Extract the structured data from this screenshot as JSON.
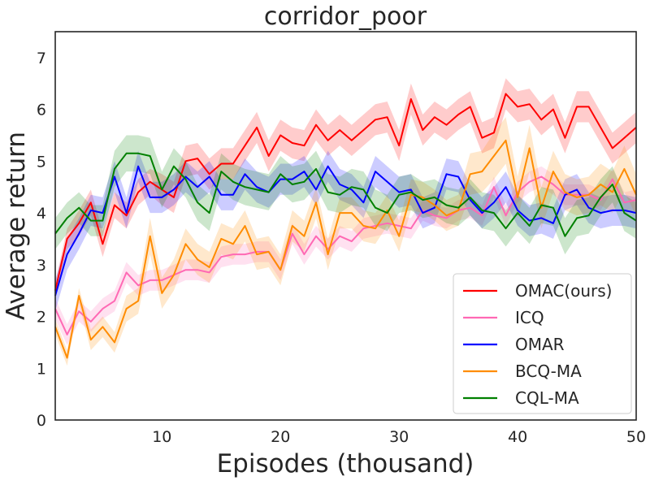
{
  "chart_data": {
    "type": "line",
    "title": "corridor_poor",
    "xlabel": "Episodes (thousand)",
    "ylabel": "Average return",
    "xlim": [
      1,
      50
    ],
    "ylim": [
      0,
      7.5
    ],
    "xticks": [
      10,
      20,
      30,
      40,
      50
    ],
    "yticks": [
      0,
      1,
      2,
      3,
      4,
      5,
      6,
      7
    ],
    "grid": false,
    "legend_position": "bottom-right",
    "x": [
      1,
      2,
      3,
      4,
      5,
      6,
      7,
      8,
      9,
      10,
      11,
      12,
      13,
      14,
      15,
      16,
      17,
      18,
      19,
      20,
      21,
      22,
      23,
      24,
      25,
      26,
      27,
      28,
      29,
      30,
      31,
      32,
      33,
      34,
      35,
      36,
      37,
      38,
      39,
      40,
      41,
      42,
      43,
      44,
      45,
      46,
      47,
      48,
      49,
      50
    ],
    "series": [
      {
        "name": "OMAC(ours)",
        "color": "#ff0000",
        "values": [
          2.5,
          3.5,
          3.8,
          4.2,
          3.4,
          4.15,
          3.95,
          4.4,
          4.6,
          4.45,
          4.3,
          5.0,
          5.05,
          4.75,
          4.95,
          4.95,
          5.3,
          5.65,
          5.1,
          5.5,
          5.35,
          5.3,
          5.7,
          5.4,
          5.6,
          5.4,
          5.6,
          5.8,
          5.85,
          5.3,
          6.2,
          5.6,
          5.85,
          5.7,
          5.9,
          6.05,
          5.45,
          5.55,
          6.3,
          6.05,
          6.1,
          5.8,
          6.0,
          5.45,
          6.05,
          6.05,
          5.65,
          5.25,
          5.45,
          5.65
        ],
        "band": [
          0.15,
          0.2,
          0.25,
          0.25,
          0.25,
          0.25,
          0.25,
          0.25,
          0.25,
          0.3,
          0.3,
          0.3,
          0.3,
          0.3,
          0.3,
          0.3,
          0.3,
          0.3,
          0.3,
          0.3,
          0.3,
          0.3,
          0.3,
          0.3,
          0.3,
          0.3,
          0.3,
          0.3,
          0.3,
          0.3,
          0.3,
          0.3,
          0.3,
          0.3,
          0.3,
          0.3,
          0.3,
          0.3,
          0.3,
          0.3,
          0.3,
          0.3,
          0.3,
          0.3,
          0.3,
          0.3,
          0.3,
          0.3,
          0.3,
          0.3
        ]
      },
      {
        "name": "ICQ",
        "color": "#ff69b4",
        "values": [
          2.15,
          1.65,
          2.1,
          1.9,
          2.15,
          2.3,
          2.85,
          2.6,
          2.7,
          2.7,
          2.8,
          2.9,
          2.9,
          2.85,
          3.15,
          3.2,
          3.2,
          3.25,
          3.25,
          2.9,
          3.6,
          3.2,
          3.55,
          3.3,
          3.55,
          3.45,
          3.7,
          3.75,
          3.8,
          3.75,
          3.7,
          4.05,
          3.95,
          3.9,
          4.05,
          4.1,
          3.95,
          4.5,
          3.95,
          4.4,
          4.6,
          4.7,
          4.55,
          4.35,
          4.35,
          4.35,
          4.25,
          4.65,
          4.2,
          4.25
        ],
        "band": [
          0.2,
          0.2,
          0.2,
          0.2,
          0.2,
          0.2,
          0.2,
          0.2,
          0.2,
          0.2,
          0.2,
          0.2,
          0.2,
          0.2,
          0.2,
          0.2,
          0.2,
          0.2,
          0.2,
          0.2,
          0.2,
          0.2,
          0.2,
          0.2,
          0.2,
          0.2,
          0.2,
          0.2,
          0.2,
          0.2,
          0.2,
          0.2,
          0.2,
          0.2,
          0.2,
          0.2,
          0.2,
          0.2,
          0.2,
          0.2,
          0.2,
          0.2,
          0.2,
          0.2,
          0.2,
          0.2,
          0.2,
          0.2,
          0.2,
          0.2
        ]
      },
      {
        "name": "OMAR",
        "color": "#0000ff",
        "values": [
          2.4,
          3.2,
          3.6,
          4.05,
          4.0,
          4.7,
          4.0,
          4.9,
          4.3,
          4.3,
          4.45,
          4.7,
          4.5,
          4.7,
          4.35,
          4.35,
          4.75,
          4.5,
          4.4,
          4.65,
          4.65,
          4.8,
          4.45,
          4.9,
          4.55,
          4.45,
          4.2,
          4.8,
          4.6,
          4.4,
          4.45,
          4.0,
          4.1,
          4.75,
          4.7,
          4.25,
          4.0,
          4.2,
          4.5,
          4.05,
          3.85,
          3.9,
          3.8,
          4.35,
          4.45,
          4.1,
          4.0,
          4.05,
          4.05,
          4.0
        ],
        "band": [
          0.3,
          0.3,
          0.3,
          0.3,
          0.3,
          0.3,
          0.3,
          0.3,
          0.3,
          0.3,
          0.3,
          0.3,
          0.3,
          0.3,
          0.3,
          0.3,
          0.3,
          0.3,
          0.3,
          0.3,
          0.3,
          0.3,
          0.3,
          0.3,
          0.3,
          0.3,
          0.3,
          0.3,
          0.3,
          0.3,
          0.3,
          0.3,
          0.3,
          0.3,
          0.3,
          0.3,
          0.3,
          0.3,
          0.3,
          0.3,
          0.3,
          0.3,
          0.3,
          0.3,
          0.3,
          0.3,
          0.3,
          0.3,
          0.3,
          0.3
        ]
      },
      {
        "name": "BCQ-MA",
        "color": "#ff8c00",
        "values": [
          1.8,
          1.2,
          2.4,
          1.55,
          1.8,
          1.5,
          2.15,
          2.3,
          3.55,
          2.45,
          2.8,
          3.4,
          3.1,
          2.95,
          3.5,
          3.4,
          3.75,
          3.2,
          3.25,
          2.9,
          3.75,
          3.55,
          4.2,
          3.2,
          4.0,
          4.0,
          3.75,
          3.7,
          4.05,
          3.55,
          4.35,
          4.3,
          4.15,
          3.95,
          4.05,
          4.75,
          4.8,
          5.1,
          5.4,
          4.3,
          5.25,
          4.1,
          4.8,
          4.4,
          4.3,
          4.35,
          4.55,
          4.4,
          4.85,
          4.35
        ],
        "band": [
          0.15,
          0.15,
          0.15,
          0.2,
          0.2,
          0.2,
          0.25,
          0.25,
          0.35,
          0.3,
          0.3,
          0.3,
          0.3,
          0.3,
          0.3,
          0.3,
          0.3,
          0.3,
          0.3,
          0.3,
          0.3,
          0.3,
          0.3,
          0.3,
          0.3,
          0.3,
          0.3,
          0.3,
          0.3,
          0.3,
          0.3,
          0.3,
          0.3,
          0.3,
          0.3,
          0.4,
          0.4,
          0.45,
          0.45,
          0.4,
          0.45,
          0.4,
          0.4,
          0.35,
          0.35,
          0.35,
          0.4,
          0.4,
          0.45,
          0.4
        ]
      },
      {
        "name": "CQL-MA",
        "color": "#008000",
        "values": [
          3.6,
          3.9,
          4.1,
          3.85,
          3.85,
          4.85,
          5.15,
          5.15,
          5.1,
          4.45,
          4.9,
          4.65,
          4.2,
          4.0,
          4.8,
          4.6,
          4.5,
          4.45,
          4.4,
          4.75,
          4.55,
          4.6,
          4.85,
          4.4,
          4.35,
          4.5,
          4.45,
          4.1,
          4.0,
          4.35,
          4.4,
          4.25,
          4.3,
          4.15,
          4.1,
          4.3,
          4.05,
          4.0,
          3.7,
          4.0,
          3.75,
          4.15,
          4.1,
          3.55,
          3.9,
          3.95,
          4.3,
          4.55,
          4.0,
          3.85
        ],
        "band": [
          0.3,
          0.3,
          0.3,
          0.3,
          0.3,
          0.35,
          0.35,
          0.35,
          0.35,
          0.35,
          0.35,
          0.35,
          0.35,
          0.35,
          0.35,
          0.35,
          0.35,
          0.35,
          0.35,
          0.35,
          0.35,
          0.35,
          0.35,
          0.35,
          0.35,
          0.35,
          0.35,
          0.35,
          0.35,
          0.35,
          0.35,
          0.35,
          0.35,
          0.35,
          0.35,
          0.35,
          0.35,
          0.35,
          0.35,
          0.35,
          0.35,
          0.35,
          0.35,
          0.35,
          0.35,
          0.35,
          0.35,
          0.35,
          0.35,
          0.35
        ]
      }
    ]
  }
}
